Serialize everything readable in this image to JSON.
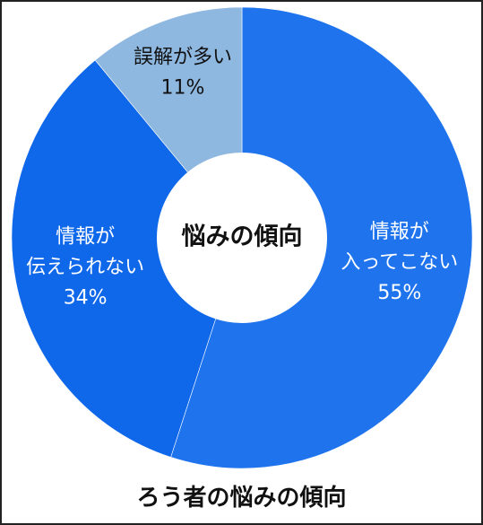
{
  "chart_data": {
    "type": "pie",
    "style": "donut",
    "title": "ろう者の悩みの傾向",
    "center_label": "悩みの傾向",
    "unit": "%",
    "slices": [
      {
        "label_lines": [
          "情報が",
          "入ってこない"
        ],
        "value": 55,
        "value_label": "55%",
        "color": "#1f74ee",
        "text_color": "#ffffff"
      },
      {
        "label_lines": [
          "情報が",
          "伝えられない"
        ],
        "value": 34,
        "value_label": "34%",
        "color": "#0f67ea",
        "text_color": "#ffffff"
      },
      {
        "label_lines": [
          "誤解が多い"
        ],
        "value": 11,
        "value_label": "11%",
        "color": "#8fb8e1",
        "text_color": "#111111"
      }
    ]
  }
}
